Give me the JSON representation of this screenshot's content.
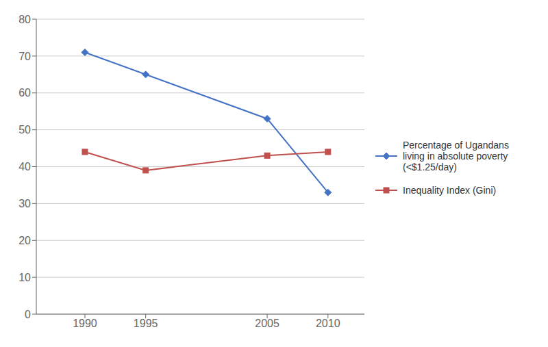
{
  "chart_data": {
    "type": "line",
    "x": [
      1990,
      1995,
      2005,
      2010
    ],
    "series": [
      {
        "name": "Percentage of Ugandans\nliving in absolute poverty\n(<$1.25/day)",
        "color": "#4472C4",
        "values": [
          71,
          65,
          53,
          33
        ],
        "marker": "diamond"
      },
      {
        "name": "Inequality Index (Gini)",
        "color": "#C0504D",
        "values": [
          44,
          39,
          43,
          44
        ],
        "marker": "square"
      }
    ],
    "xlim": [
      1986,
      2013
    ],
    "xticks": [
      1990,
      1995,
      2005,
      2010
    ],
    "ylim": [
      0,
      80
    ],
    "yticks": [
      0,
      10,
      20,
      30,
      40,
      50,
      60,
      70,
      80
    ],
    "grid": true,
    "legend": "right"
  }
}
